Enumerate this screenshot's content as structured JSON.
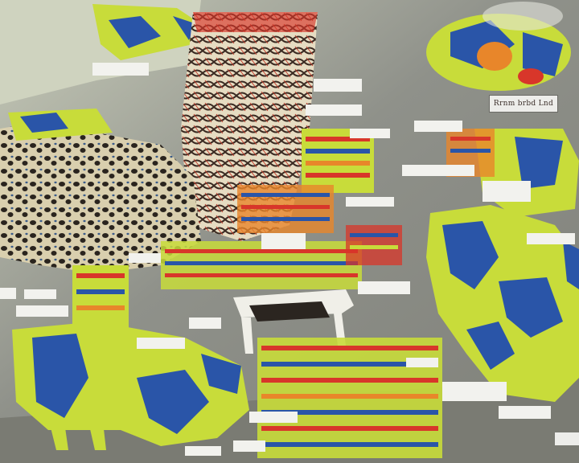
{
  "image": {
    "kind": "generated surreal collage",
    "palette": {
      "background": "#8d8e86",
      "lime": "#c8dc3a",
      "blue": "#2a55a8",
      "red": "#d8362a",
      "orange": "#e8862a",
      "cream": "#e8e0c8",
      "dark": "#2b2520",
      "label_white": "#f2f2ee"
    }
  },
  "caption": {
    "text": "Rrnm brbd Lnd"
  },
  "caption2": {
    "text": ""
  }
}
